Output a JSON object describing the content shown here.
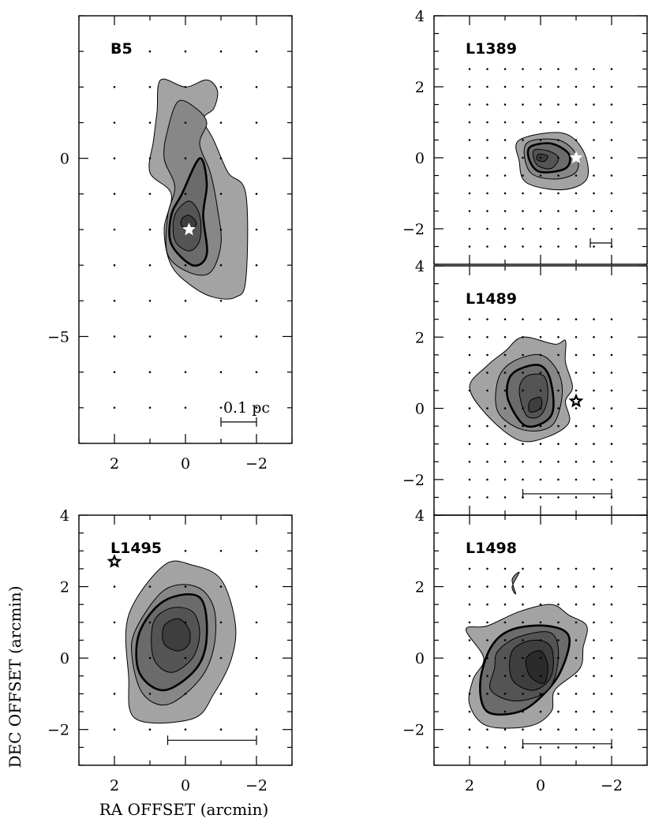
{
  "figure": {
    "xlabel": "RA OFFSET (arcmin)",
    "ylabel": "DEC OFFSET (arcmin)",
    "scale_label": "0.1 pc",
    "colors": {
      "contour1": "#9a9a9a",
      "contour2": "#7e7e7e",
      "contour3": "#626262",
      "contour4": "#4a4a4a",
      "contour5": "#333333"
    }
  },
  "chart_data": [
    {
      "type": "contour",
      "name": "B5",
      "xlim": [
        3,
        -3
      ],
      "ylim": [
        -8,
        4
      ],
      "xticks": [
        2,
        0,
        -2
      ],
      "yticks": [
        0,
        -5
      ],
      "xtick_labels": [
        "2",
        "0",
        "−2"
      ],
      "ytick_labels": [
        "0",
        "−5"
      ],
      "show_xtick_labels": true,
      "show_ytick_labels": true,
      "sampling": 1.0,
      "grid_x": [
        -2,
        2
      ],
      "grid_y": [
        -7,
        3
      ],
      "star": {
        "x": -0.1,
        "y": -2.0,
        "color": "white"
      },
      "scalebar": {
        "x1": -1.0,
        "x2": -2.0,
        "y": -7.4,
        "label": "0.1 pc"
      },
      "contours": [
        [
          [
            0.7,
            2.2
          ],
          [
            0.0,
            2.0
          ],
          [
            -0.6,
            2.2
          ],
          [
            -0.9,
            1.9
          ],
          [
            -0.8,
            1.4
          ],
          [
            -0.5,
            1.1
          ],
          [
            -0.8,
            0.5
          ],
          [
            -1.2,
            -0.4
          ],
          [
            -1.7,
            -1.0
          ],
          [
            -1.7,
            -3.4
          ],
          [
            -1.4,
            -3.9
          ],
          [
            -0.8,
            -3.9
          ],
          [
            -0.2,
            -3.6
          ],
          [
            0.4,
            -3.0
          ],
          [
            0.6,
            -2.0
          ],
          [
            0.4,
            -1.0
          ],
          [
            1.0,
            -0.4
          ],
          [
            0.9,
            0.5
          ],
          [
            0.8,
            1.3
          ]
        ],
        [
          [
            0.2,
            1.6
          ],
          [
            -0.3,
            1.4
          ],
          [
            -0.6,
            1.0
          ],
          [
            -0.4,
            0.4
          ],
          [
            -0.7,
            -0.4
          ],
          [
            -0.9,
            -1.4
          ],
          [
            -1.0,
            -2.4
          ],
          [
            -0.7,
            -3.2
          ],
          [
            -0.1,
            -3.2
          ],
          [
            0.5,
            -2.7
          ],
          [
            0.5,
            -1.6
          ],
          [
            0.3,
            -0.8
          ],
          [
            0.6,
            0.0
          ],
          [
            0.5,
            0.8
          ]
        ],
        [
          [
            -0.4,
            0.0
          ],
          [
            -0.6,
            -0.7
          ],
          [
            -0.5,
            -1.6
          ],
          [
            -0.6,
            -2.7
          ],
          [
            -0.2,
            -3.0
          ],
          [
            0.4,
            -2.4
          ],
          [
            0.4,
            -1.6
          ],
          [
            0.1,
            -1.0
          ]
        ],
        [
          [
            -0.1,
            -1.2
          ],
          [
            -0.4,
            -1.6
          ],
          [
            -0.4,
            -2.3
          ],
          [
            -0.1,
            -2.6
          ],
          [
            0.3,
            -2.3
          ],
          [
            0.3,
            -1.6
          ]
        ],
        [
          [
            -0.1,
            -1.6
          ],
          [
            -0.3,
            -1.8
          ],
          [
            -0.2,
            -2.0
          ],
          [
            0.1,
            -1.9
          ],
          [
            0.1,
            -1.7
          ]
        ]
      ]
    },
    {
      "type": "contour",
      "name": "L1389",
      "xlim": [
        3,
        -3
      ],
      "ylim": [
        -3,
        4
      ],
      "xticks": [
        2,
        0,
        -2
      ],
      "yticks": [
        4,
        2,
        0,
        -2
      ],
      "xtick_labels": [
        "2",
        "0",
        "−2"
      ],
      "ytick_labels": [
        "4",
        "2",
        "0",
        "−2"
      ],
      "show_xtick_labels": false,
      "show_ytick_labels": true,
      "sampling": 0.5,
      "grid_x": [
        -2,
        2
      ],
      "grid_y": [
        -2.5,
        2.5
      ],
      "star": {
        "x": -1.0,
        "y": 0.0,
        "color": "white"
      },
      "scalebar": {
        "x1": -1.4,
        "x2": -2.0,
        "y": -2.4,
        "label": ""
      },
      "contours": [
        [
          [
            0.6,
            0.5
          ],
          [
            -0.6,
            0.7
          ],
          [
            -1.2,
            0.2
          ],
          [
            -1.3,
            -0.6
          ],
          [
            -0.6,
            -0.9
          ],
          [
            0.4,
            -0.7
          ],
          [
            0.6,
            -0.1
          ]
        ],
        [
          [
            0.4,
            0.4
          ],
          [
            -0.5,
            0.5
          ],
          [
            -1.0,
            0.1
          ],
          [
            -1.0,
            -0.4
          ],
          [
            -0.4,
            -0.6
          ],
          [
            0.3,
            -0.4
          ]
        ],
        [
          [
            0.3,
            0.3
          ],
          [
            -0.3,
            0.4
          ],
          [
            -0.8,
            0.1
          ],
          [
            -0.7,
            -0.3
          ],
          [
            0.0,
            -0.4
          ],
          [
            0.3,
            -0.1
          ]
        ],
        [
          [
            0.2,
            0.2
          ],
          [
            -0.2,
            0.2
          ],
          [
            -0.5,
            0.0
          ],
          [
            -0.3,
            -0.3
          ],
          [
            0.1,
            -0.2
          ]
        ],
        [
          [
            0.05,
            0.1
          ],
          [
            -0.2,
            0.05
          ],
          [
            -0.1,
            -0.1
          ],
          [
            0.1,
            -0.05
          ]
        ]
      ]
    },
    {
      "type": "contour",
      "name": "L1495",
      "xlim": [
        3,
        -3
      ],
      "ylim": [
        -3,
        4
      ],
      "xticks": [
        2,
        0,
        -2
      ],
      "yticks": [
        4,
        2,
        0,
        -2
      ],
      "xtick_labels": [
        "2",
        "0",
        "−2"
      ],
      "ytick_labels": [
        "4",
        "2",
        "0",
        "−2"
      ],
      "show_xtick_labels": true,
      "show_ytick_labels": true,
      "sampling": 1.0,
      "grid_x": [
        -2,
        2
      ],
      "grid_y": [
        -2,
        3
      ],
      "star": {
        "x": 2.0,
        "y": 2.7,
        "color": "black"
      },
      "scalebar": {
        "x1": 0.5,
        "x2": -2.0,
        "y": -2.3,
        "label": ""
      },
      "contours": [
        [
          [
            1.6,
            1.2
          ],
          [
            0.6,
            2.6
          ],
          [
            -0.2,
            2.6
          ],
          [
            -1.0,
            2.2
          ],
          [
            -1.4,
            1.0
          ],
          [
            -1.3,
            0.0
          ],
          [
            -0.8,
            -1.0
          ],
          [
            -0.2,
            -1.7
          ],
          [
            1.4,
            -1.7
          ],
          [
            1.6,
            -0.5
          ]
        ],
        [
          [
            1.4,
            0.8
          ],
          [
            0.6,
            1.9
          ],
          [
            -0.3,
            2.0
          ],
          [
            -0.8,
            1.4
          ],
          [
            -0.8,
            0.3
          ],
          [
            -0.4,
            -0.6
          ],
          [
            0.5,
            -1.3
          ],
          [
            1.2,
            -1.0
          ],
          [
            1.5,
            0.0
          ]
        ],
        [
          [
            1.3,
            0.7
          ],
          [
            0.6,
            1.6
          ],
          [
            -0.4,
            1.7
          ],
          [
            -0.6,
            0.6
          ],
          [
            -0.3,
            -0.3
          ],
          [
            0.6,
            -0.9
          ],
          [
            1.3,
            -0.4
          ]
        ],
        [
          [
            0.9,
            1.0
          ],
          [
            0.4,
            1.4
          ],
          [
            -0.2,
            1.3
          ],
          [
            -0.4,
            0.7
          ],
          [
            -0.2,
            0.0
          ],
          [
            0.4,
            -0.4
          ],
          [
            0.9,
            0.0
          ]
        ],
        [
          [
            0.6,
            0.9
          ],
          [
            0.2,
            1.1
          ],
          [
            -0.1,
            0.8
          ],
          [
            -0.1,
            0.4
          ],
          [
            0.2,
            0.2
          ],
          [
            0.6,
            0.4
          ]
        ]
      ]
    },
    {
      "type": "contour",
      "name": "L1489",
      "xlim": [
        3,
        -3
      ],
      "ylim": [
        -3,
        4
      ],
      "xticks": [
        2,
        0,
        -2
      ],
      "yticks": [
        4,
        2,
        0,
        -2
      ],
      "xtick_labels": [
        "2",
        "0",
        "−2"
      ],
      "ytick_labels": [
        "4",
        "2",
        "0",
        "−2"
      ],
      "show_xtick_labels": false,
      "show_ytick_labels": true,
      "sampling": 0.5,
      "grid_x": [
        -2,
        2
      ],
      "grid_y": [
        -2.5,
        2.5
      ],
      "star": {
        "x": -1.0,
        "y": 0.2,
        "color": "black"
      },
      "scalebar": {
        "x1": 0.5,
        "x2": -2.0,
        "y": -2.4,
        "label": ""
      },
      "contours": [
        [
          [
            1.0,
            1.6
          ],
          [
            0.5,
            2.0
          ],
          [
            -0.4,
            1.8
          ],
          [
            -0.7,
            1.9
          ],
          [
            -0.7,
            1.3
          ],
          [
            -0.9,
            0.6
          ],
          [
            -0.7,
            0.2
          ],
          [
            -0.8,
            -0.4
          ],
          [
            -0.2,
            -0.8
          ],
          [
            0.6,
            -0.9
          ],
          [
            1.5,
            -0.2
          ],
          [
            2.0,
            0.6
          ],
          [
            1.5,
            1.2
          ]
        ],
        [
          [
            0.8,
            1.3
          ],
          [
            0.0,
            1.5
          ],
          [
            -0.5,
            1.0
          ],
          [
            -0.6,
            0.3
          ],
          [
            -0.3,
            -0.5
          ],
          [
            0.5,
            -0.6
          ],
          [
            1.2,
            -0.1
          ],
          [
            1.2,
            0.8
          ]
        ],
        [
          [
            0.6,
            1.1
          ],
          [
            0.0,
            1.2
          ],
          [
            -0.3,
            0.7
          ],
          [
            -0.3,
            -0.2
          ],
          [
            0.4,
            -0.5
          ],
          [
            0.9,
            0.2
          ],
          [
            0.9,
            0.8
          ]
        ],
        [
          [
            0.4,
            0.9
          ],
          [
            -0.1,
            0.9
          ],
          [
            -0.2,
            0.3
          ],
          [
            0.0,
            -0.2
          ],
          [
            0.4,
            -0.2
          ],
          [
            0.6,
            0.5
          ]
        ],
        [
          [
            0.3,
            0.2
          ],
          [
            0.0,
            0.3
          ],
          [
            0.0,
            0.0
          ],
          [
            0.3,
            -0.1
          ]
        ]
      ]
    },
    {
      "type": "contour",
      "name": "L1498",
      "xlim": [
        3,
        -3
      ],
      "ylim": [
        -3,
        4
      ],
      "xticks": [
        2,
        0,
        -2
      ],
      "yticks": [
        4,
        2,
        0,
        -2
      ],
      "xtick_labels": [
        "2",
        "0",
        "−2"
      ],
      "ytick_labels": [
        "4",
        "2",
        "0",
        "−2"
      ],
      "show_xtick_labels": true,
      "show_ytick_labels": true,
      "sampling": 0.5,
      "grid_x": [
        -2,
        2
      ],
      "grid_y": [
        -2.5,
        2.5
      ],
      "star": null,
      "scalebar": {
        "x1": 0.5,
        "x2": -2.0,
        "y": -2.4,
        "label": ""
      },
      "contours": [
        [
          [
            1.5,
            0.9
          ],
          [
            0.6,
            1.3
          ],
          [
            -0.3,
            1.5
          ],
          [
            -0.8,
            1.2
          ],
          [
            -1.3,
            0.9
          ],
          [
            -1.2,
            0.3
          ],
          [
            -1.1,
            -0.3
          ],
          [
            -0.4,
            -0.9
          ],
          [
            -0.3,
            -1.5
          ],
          [
            0.3,
            -1.9
          ],
          [
            1.5,
            -1.9
          ],
          [
            2.0,
            -1.3
          ],
          [
            1.9,
            -0.6
          ],
          [
            1.6,
            0.0
          ],
          [
            2.1,
            0.8
          ]
        ],
        [
          [
            0.6,
            2.4
          ],
          [
            0.8,
            2.2
          ],
          [
            0.7,
            1.8
          ],
          [
            0.8,
            2.0
          ]
        ],
        [
          [
            1.4,
            0.3
          ],
          [
            0.8,
            0.8
          ],
          [
            -0.2,
            0.9
          ],
          [
            -0.8,
            0.6
          ],
          [
            -0.6,
            -0.3
          ],
          [
            -0.1,
            -1.0
          ],
          [
            0.6,
            -1.5
          ],
          [
            1.5,
            -1.5
          ],
          [
            1.7,
            -0.7
          ]
        ],
        [
          [
            1.2,
            0.2
          ],
          [
            0.6,
            0.6
          ],
          [
            -0.3,
            0.7
          ],
          [
            -0.5,
            0.0
          ],
          [
            -0.2,
            -0.9
          ],
          [
            0.7,
            -1.2
          ],
          [
            1.4,
            -0.9
          ],
          [
            1.3,
            -0.3
          ]
        ],
        [
          [
            0.8,
            0.2
          ],
          [
            0.2,
            0.5
          ],
          [
            -0.3,
            0.3
          ],
          [
            -0.3,
            -0.5
          ],
          [
            0.2,
            -0.9
          ],
          [
            0.8,
            -0.6
          ]
        ],
        [
          [
            0.4,
            0.0
          ],
          [
            0.0,
            0.2
          ],
          [
            -0.2,
            -0.2
          ],
          [
            -0.1,
            -0.7
          ],
          [
            0.3,
            -0.5
          ]
        ]
      ]
    }
  ]
}
